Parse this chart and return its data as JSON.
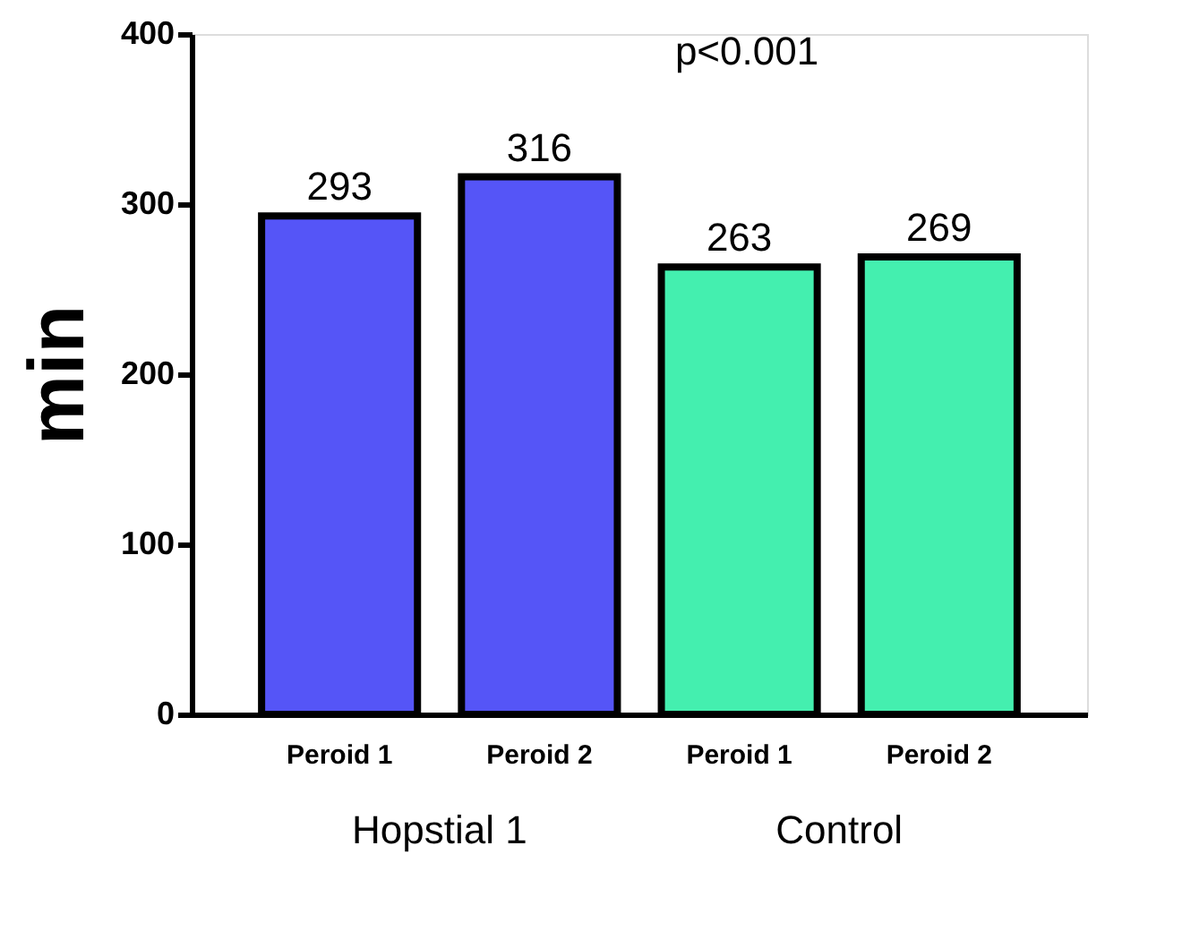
{
  "chart_data": {
    "type": "bar",
    "categories": [
      "Peroid 1",
      "Peroid 2",
      "Peroid 1",
      "Peroid 2"
    ],
    "values": [
      293,
      316,
      263,
      269
    ],
    "colors": [
      "#5555f7",
      "#5555f7",
      "#44efaf",
      "#44efaf"
    ],
    "ylabel": "min",
    "ylim": [
      0,
      400
    ],
    "yticks": [
      0,
      100,
      200,
      300,
      400
    ],
    "data_labels": true,
    "grid": false,
    "annotations": [
      "p<0.001",
      "Hopstial 1",
      "Control"
    ]
  }
}
